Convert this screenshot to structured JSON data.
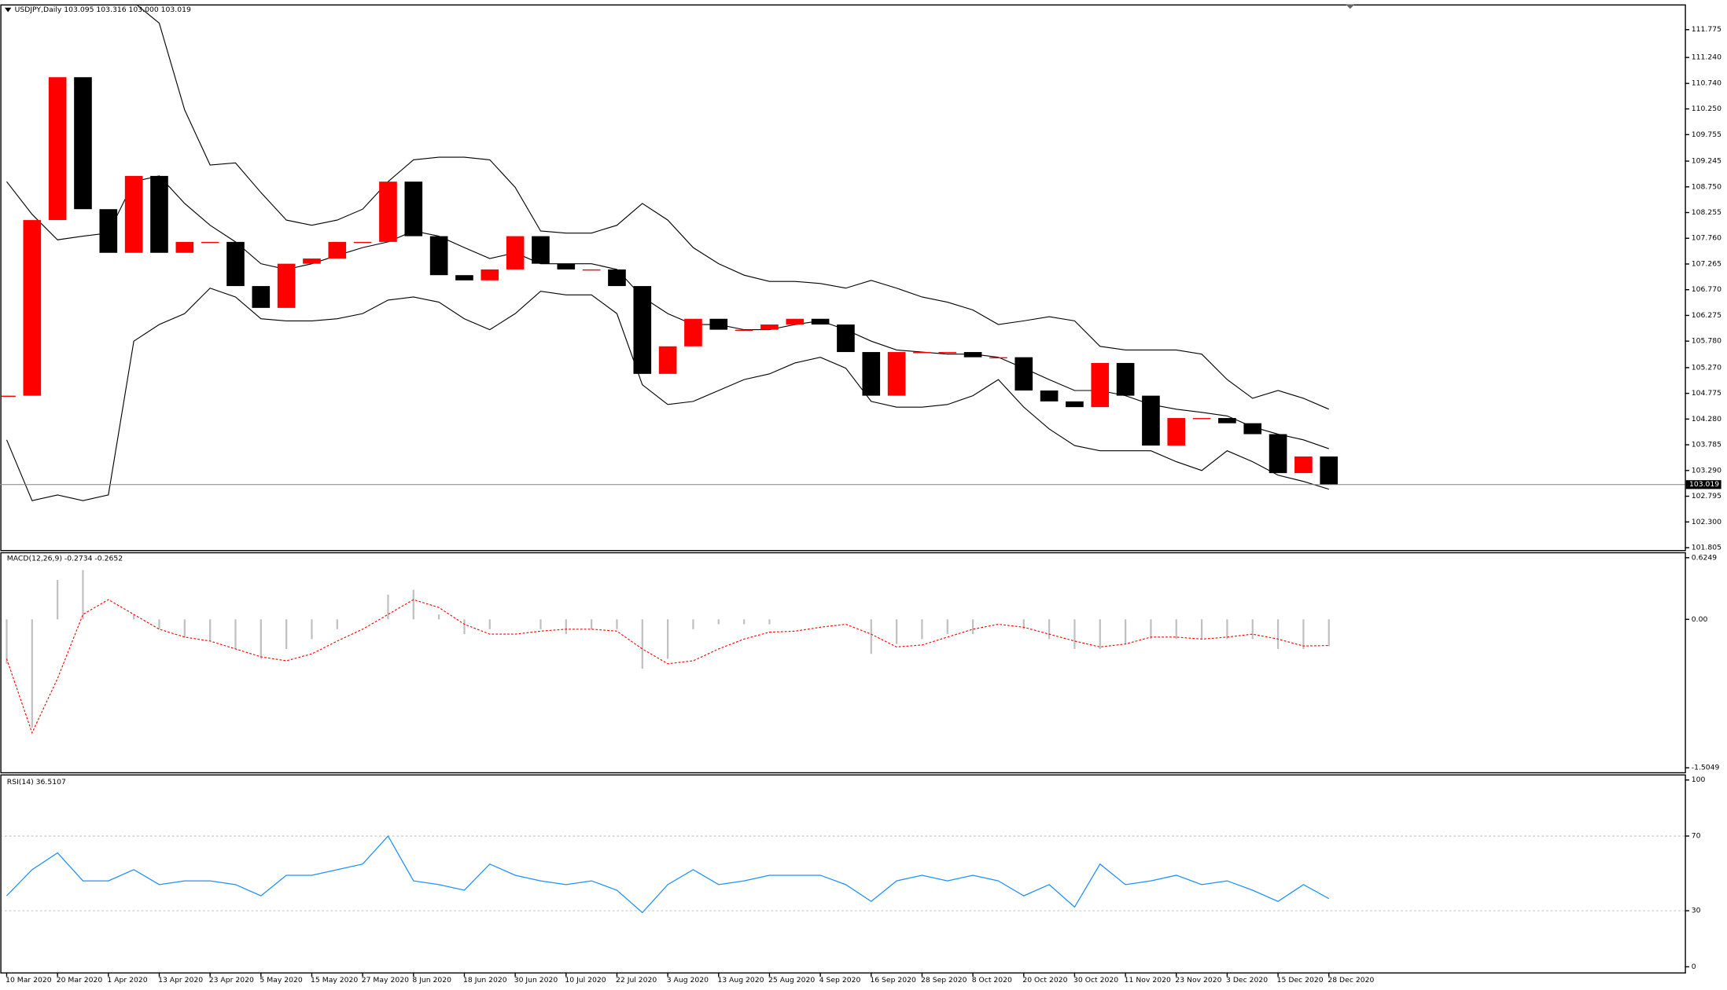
{
  "chart_data": [
    {
      "type": "candlestick",
      "title": "USDJPY,Daily  103.095 103.316 103.000 103.019",
      "x": [
        0,
        4,
        8,
        12,
        16,
        20,
        24,
        28,
        32,
        36,
        40,
        44,
        48,
        52,
        56,
        60,
        64,
        68,
        72,
        76,
        80,
        84,
        88,
        92,
        96,
        100,
        104,
        108,
        112,
        116,
        120,
        124,
        128,
        132,
        136,
        140,
        144,
        148,
        152,
        156,
        160,
        164,
        168,
        172,
        176,
        180,
        184,
        188,
        192,
        196,
        200,
        204,
        208
      ],
      "xlim": [
        -1,
        264
      ],
      "values": [
        104.73,
        108.11,
        110.86,
        108.32,
        107.48,
        108.96,
        107.48,
        107.69,
        107.69,
        106.84,
        106.42,
        107.27,
        107.37,
        107.69,
        107.69,
        108.85,
        107.8,
        107.05,
        106.95,
        107.16,
        107.8,
        107.27,
        107.16,
        107.16,
        106.84,
        105.15,
        105.68,
        106.21,
        106.0,
        106.0,
        106.1,
        106.21,
        106.1,
        105.57,
        104.73,
        105.57,
        105.57,
        105.57,
        105.47,
        105.47,
        104.83,
        104.62,
        104.51,
        105.36,
        104.73,
        103.77,
        104.3,
        104.3,
        104.2,
        103.99,
        103.24,
        103.56,
        103.019
      ],
      "up_color": "#ff0000",
      "down_color": "#000000",
      "bands": [
        [
          113.0,
          113.5,
          113.8,
          113.5,
          113.0,
          112.3,
          111.9,
          110.23,
          109.17,
          109.21,
          108.64,
          108.11,
          108.01,
          108.11,
          108.32,
          108.85,
          109.27,
          109.32,
          109.32,
          109.27,
          108.74,
          107.9,
          107.86,
          107.86,
          108.01,
          108.43,
          108.11,
          107.58,
          107.27,
          107.05,
          106.93,
          106.93,
          106.89,
          106.8,
          106.95,
          106.8,
          106.63,
          106.53,
          106.38,
          106.1,
          106.17,
          106.25,
          106.17,
          105.68,
          105.61,
          105.61,
          105.61,
          105.53,
          105.04,
          104.68,
          104.83,
          104.68,
          104.47
        ],
        [
          108.85,
          108.22,
          107.73,
          107.8,
          107.86,
          108.85,
          108.96,
          108.43,
          108.01,
          107.69,
          107.27,
          107.16,
          107.27,
          107.43,
          107.58,
          107.69,
          107.9,
          107.8,
          107.58,
          107.37,
          107.48,
          107.27,
          107.27,
          107.27,
          107.16,
          106.63,
          106.31,
          106.1,
          106.1,
          106.0,
          106.0,
          106.1,
          106.17,
          106.0,
          105.78,
          105.61,
          105.57,
          105.53,
          105.53,
          105.47,
          105.26,
          105.04,
          104.83,
          104.83,
          104.73,
          104.56,
          104.47,
          104.41,
          104.34,
          104.13,
          103.99,
          103.88,
          103.71
        ],
        [
          103.88,
          102.71,
          102.82,
          102.71,
          102.82,
          105.78,
          106.1,
          106.31,
          106.8,
          106.63,
          106.21,
          106.17,
          106.17,
          106.21,
          106.31,
          106.57,
          106.63,
          106.53,
          106.21,
          106.0,
          106.31,
          106.74,
          106.67,
          106.67,
          106.31,
          104.94,
          104.56,
          104.62,
          104.83,
          105.04,
          105.15,
          105.36,
          105.47,
          105.26,
          104.62,
          104.51,
          104.51,
          104.56,
          104.73,
          105.04,
          104.51,
          104.09,
          103.77,
          103.67,
          103.67,
          103.67,
          103.46,
          103.29,
          103.67,
          103.46,
          103.2,
          103.08,
          102.93
        ]
      ],
      "band_color": "#000000",
      "current_price": 103.019,
      "ylim": [
        101.76,
        112.24
      ],
      "yticks": [
        101.805,
        {
          "value": 102.3,
          "label": "102.300"
        },
        102.795,
        {
          "value": 103.29,
          "label": "103.290"
        },
        103.785,
        {
          "value": 104.28,
          "label": "104.280"
        },
        104.775,
        {
          "value": 105.27,
          "label": "105.270"
        },
        {
          "value": 105.78,
          "label": "105.780"
        },
        106.275,
        {
          "value": 106.77,
          "label": "106.770"
        },
        107.265,
        {
          "value": 107.76,
          "label": "107.760"
        },
        108.255,
        {
          "value": 108.75,
          "label": "108.750"
        },
        109.245,
        109.755,
        {
          "value": 110.25,
          "label": "110.250"
        },
        {
          "value": 110.74,
          "label": "110.740"
        },
        {
          "value": 111.24,
          "label": "111.240"
        },
        111.775
      ]
    },
    {
      "type": "macd",
      "title": "MACD(12,26,9) -0.2734 -0.2652",
      "values": [
        -0.45,
        -1.1,
        0.4,
        0.5,
        0.0,
        0.05,
        -0.1,
        -0.18,
        -0.22,
        -0.3,
        -0.4,
        -0.3,
        -0.2,
        -0.1,
        0.0,
        0.25,
        0.3,
        0.05,
        -0.15,
        -0.1,
        0.0,
        -0.1,
        -0.15,
        -0.1,
        -0.1,
        -0.5,
        -0.4,
        -0.1,
        -0.05,
        -0.05,
        -0.05,
        0.0,
        0.0,
        0.0,
        -0.35,
        -0.25,
        -0.2,
        -0.15,
        -0.15,
        0.0,
        -0.1,
        -0.2,
        -0.3,
        -0.3,
        -0.25,
        -0.2,
        -0.2,
        -0.2,
        -0.2,
        -0.2,
        -0.3,
        -0.3,
        -0.2734
      ],
      "color": "#c0c0c0",
      "signal": [
        -0.4,
        -1.15,
        -0.6,
        0.05,
        0.2,
        0.05,
        -0.1,
        -0.18,
        -0.22,
        -0.3,
        -0.38,
        -0.42,
        -0.35,
        -0.22,
        -0.1,
        0.05,
        0.2,
        0.12,
        -0.05,
        -0.15,
        -0.15,
        -0.12,
        -0.1,
        -0.1,
        -0.12,
        -0.3,
        -0.45,
        -0.42,
        -0.3,
        -0.2,
        -0.13,
        -0.12,
        -0.08,
        -0.05,
        -0.15,
        -0.28,
        -0.26,
        -0.18,
        -0.1,
        -0.05,
        -0.08,
        -0.15,
        -0.22,
        -0.28,
        -0.25,
        -0.18,
        -0.18,
        -0.2,
        -0.18,
        -0.15,
        -0.2,
        -0.27,
        -0.2652
      ],
      "signal_color": "#ff0000",
      "ylim": [
        -1.5495,
        0.6695
      ],
      "yticks": [
        0.6249,
        {
          "value": 0,
          "label": "0.00"
        },
        -1.5049
      ]
    },
    {
      "type": "line",
      "title": "RSI(14) 36.5107",
      "values": [
        38,
        52,
        61,
        46,
        46,
        52,
        44,
        46,
        46,
        44,
        38,
        49,
        49,
        52,
        55,
        70,
        46,
        44,
        41,
        55,
        49,
        46,
        44,
        46,
        41,
        29,
        44,
        52,
        44,
        46,
        49,
        49,
        49,
        44,
        35,
        46,
        49,
        46,
        49,
        46,
        38,
        44,
        32,
        55,
        44,
        46,
        49,
        44,
        46,
        41,
        35,
        44,
        36.5107
      ],
      "color": "#1e90ff",
      "levels": [
        30,
        70
      ],
      "ylim": [
        -3,
        102.4
      ],
      "yticks": [
        0,
        30,
        70,
        100
      ],
      "xticks": [
        {
          "value": 0,
          "label": "10 Mar 2020"
        },
        {
          "value": 8,
          "label": "20 Mar 2020"
        },
        {
          "value": 16,
          "label": "1 Apr 2020"
        },
        {
          "value": 24,
          "label": "13 Apr 2020"
        },
        {
          "value": 32,
          "label": "23 Apr 2020"
        },
        {
          "value": 40,
          "label": "5 May 2020"
        },
        {
          "value": 48,
          "label": "15 May 2020"
        },
        {
          "value": 56,
          "label": "27 May 2020"
        },
        {
          "value": 64,
          "label": "8 Jun 2020"
        },
        {
          "value": 72,
          "label": "18 Jun 2020"
        },
        {
          "value": 80,
          "label": "30 Jun 2020"
        },
        {
          "value": 88,
          "label": "10 Jul 2020"
        },
        {
          "value": 96,
          "label": "22 Jul 2020"
        },
        {
          "value": 104,
          "label": "3 Aug 2020"
        },
        {
          "value": 112,
          "label": "13 Aug 2020"
        },
        {
          "value": 120,
          "label": "25 Aug 2020"
        },
        {
          "value": 128,
          "label": "4 Sep 2020"
        },
        {
          "value": 136,
          "label": "16 Sep 2020"
        },
        {
          "value": 144,
          "label": "28 Sep 2020"
        },
        {
          "value": 152,
          "label": "8 Oct 2020"
        },
        {
          "value": 160,
          "label": "20 Oct 2020"
        },
        {
          "value": 168,
          "label": "30 Oct 2020"
        },
        {
          "value": 176,
          "label": "11 Nov 2020"
        },
        {
          "value": 184,
          "label": "23 Nov 2020"
        },
        {
          "value": 192,
          "label": "3 Dec 2020"
        },
        {
          "value": 200,
          "label": "15 Dec 2020"
        },
        {
          "value": 208,
          "label": "28 Dec 2020"
        }
      ]
    }
  ]
}
